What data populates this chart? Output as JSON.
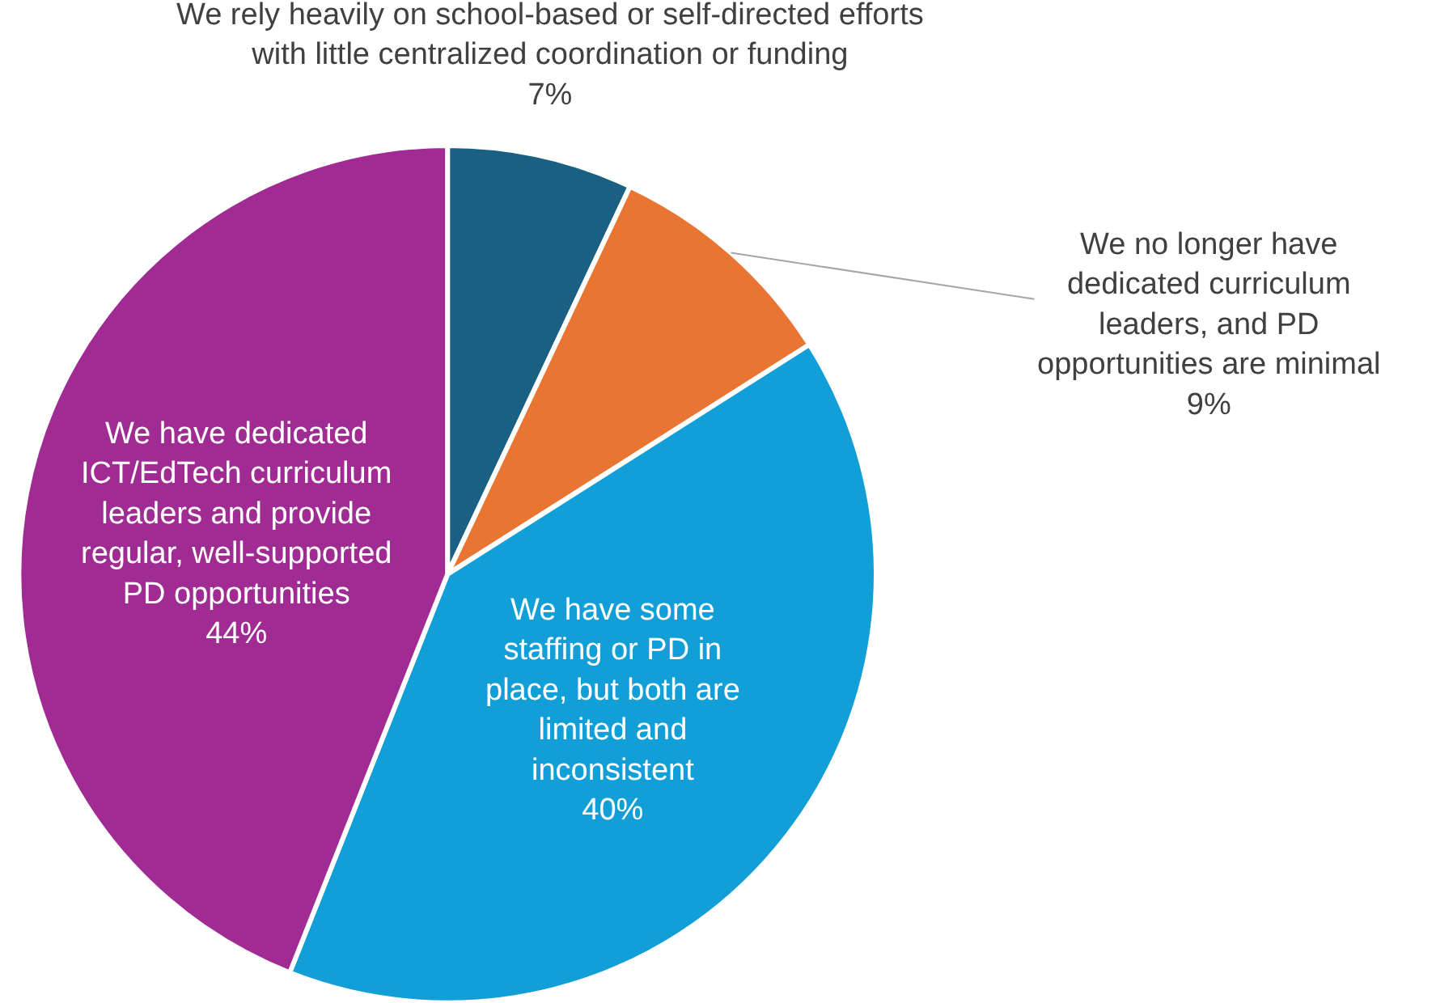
{
  "chart_data": {
    "type": "pie",
    "categories": [
      "We rely heavily on school-based or self-directed efforts with little centralized coordination or funding",
      "We no longer have dedicated curriculum leaders, and PD opportunities are minimal",
      "We have some staffing or PD in place, but both are limited and inconsistent",
      "We have dedicated ICT/EdTech curriculum leaders and provide regular, well-supported PD opportunities"
    ],
    "values": [
      7,
      9,
      40,
      44
    ],
    "value_labels": [
      "7%",
      "9%",
      "40%",
      "44%"
    ],
    "colors": [
      "#1a6082",
      "#e97532",
      "#129fd8",
      "#a02b93"
    ],
    "legend": false
  }
}
